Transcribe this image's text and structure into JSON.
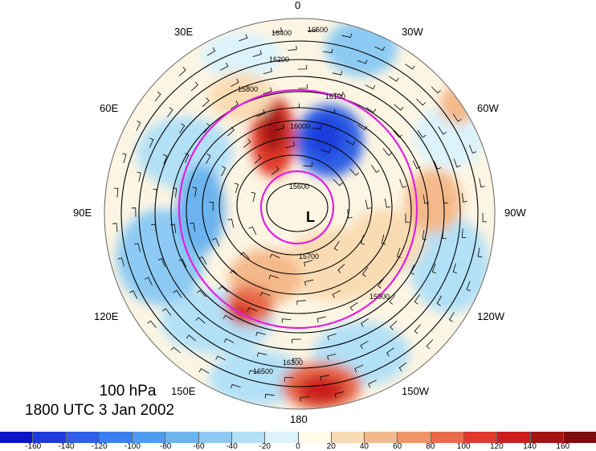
{
  "map": {
    "level_label": "100 hPa",
    "time_label": "1800 UTC 3 Jan 2002",
    "low_label": "L",
    "longitude_labels": {
      "top": "0",
      "top_left": "30E",
      "top_right": "30W",
      "upper_left": "60E",
      "upper_right": "60W",
      "left": "90E",
      "right": "90W",
      "lower_left": "120E",
      "lower_right": "120W",
      "bottom_left": "150E",
      "bottom_right": "150W",
      "bottom": "180"
    },
    "contour_labels": [
      "16400",
      "16600",
      "16200",
      "16300",
      "16500",
      "16000",
      "15800",
      "15600",
      "15900",
      "16100",
      "15700"
    ],
    "circle_color": "#e020e0"
  },
  "colorbar": {
    "ticks": [
      "-160",
      "-140",
      "-120",
      "-100",
      "-80",
      "-60",
      "-40",
      "-20",
      "0",
      "20",
      "40",
      "60",
      "80",
      "100",
      "120",
      "140",
      "160"
    ],
    "colors": [
      "#0a14c8",
      "#1e3cdc",
      "#2e5fe6",
      "#3a7ff0",
      "#4f9bf0",
      "#6cb3ef",
      "#8ccaf3",
      "#b2e0f7",
      "#dcf3fb",
      "#fffbe6",
      "#fadcb4",
      "#f4b98a",
      "#ef9666",
      "#e76b4a",
      "#e03a2c",
      "#cc1e1e",
      "#a31414",
      "#7e0c0c"
    ]
  }
}
